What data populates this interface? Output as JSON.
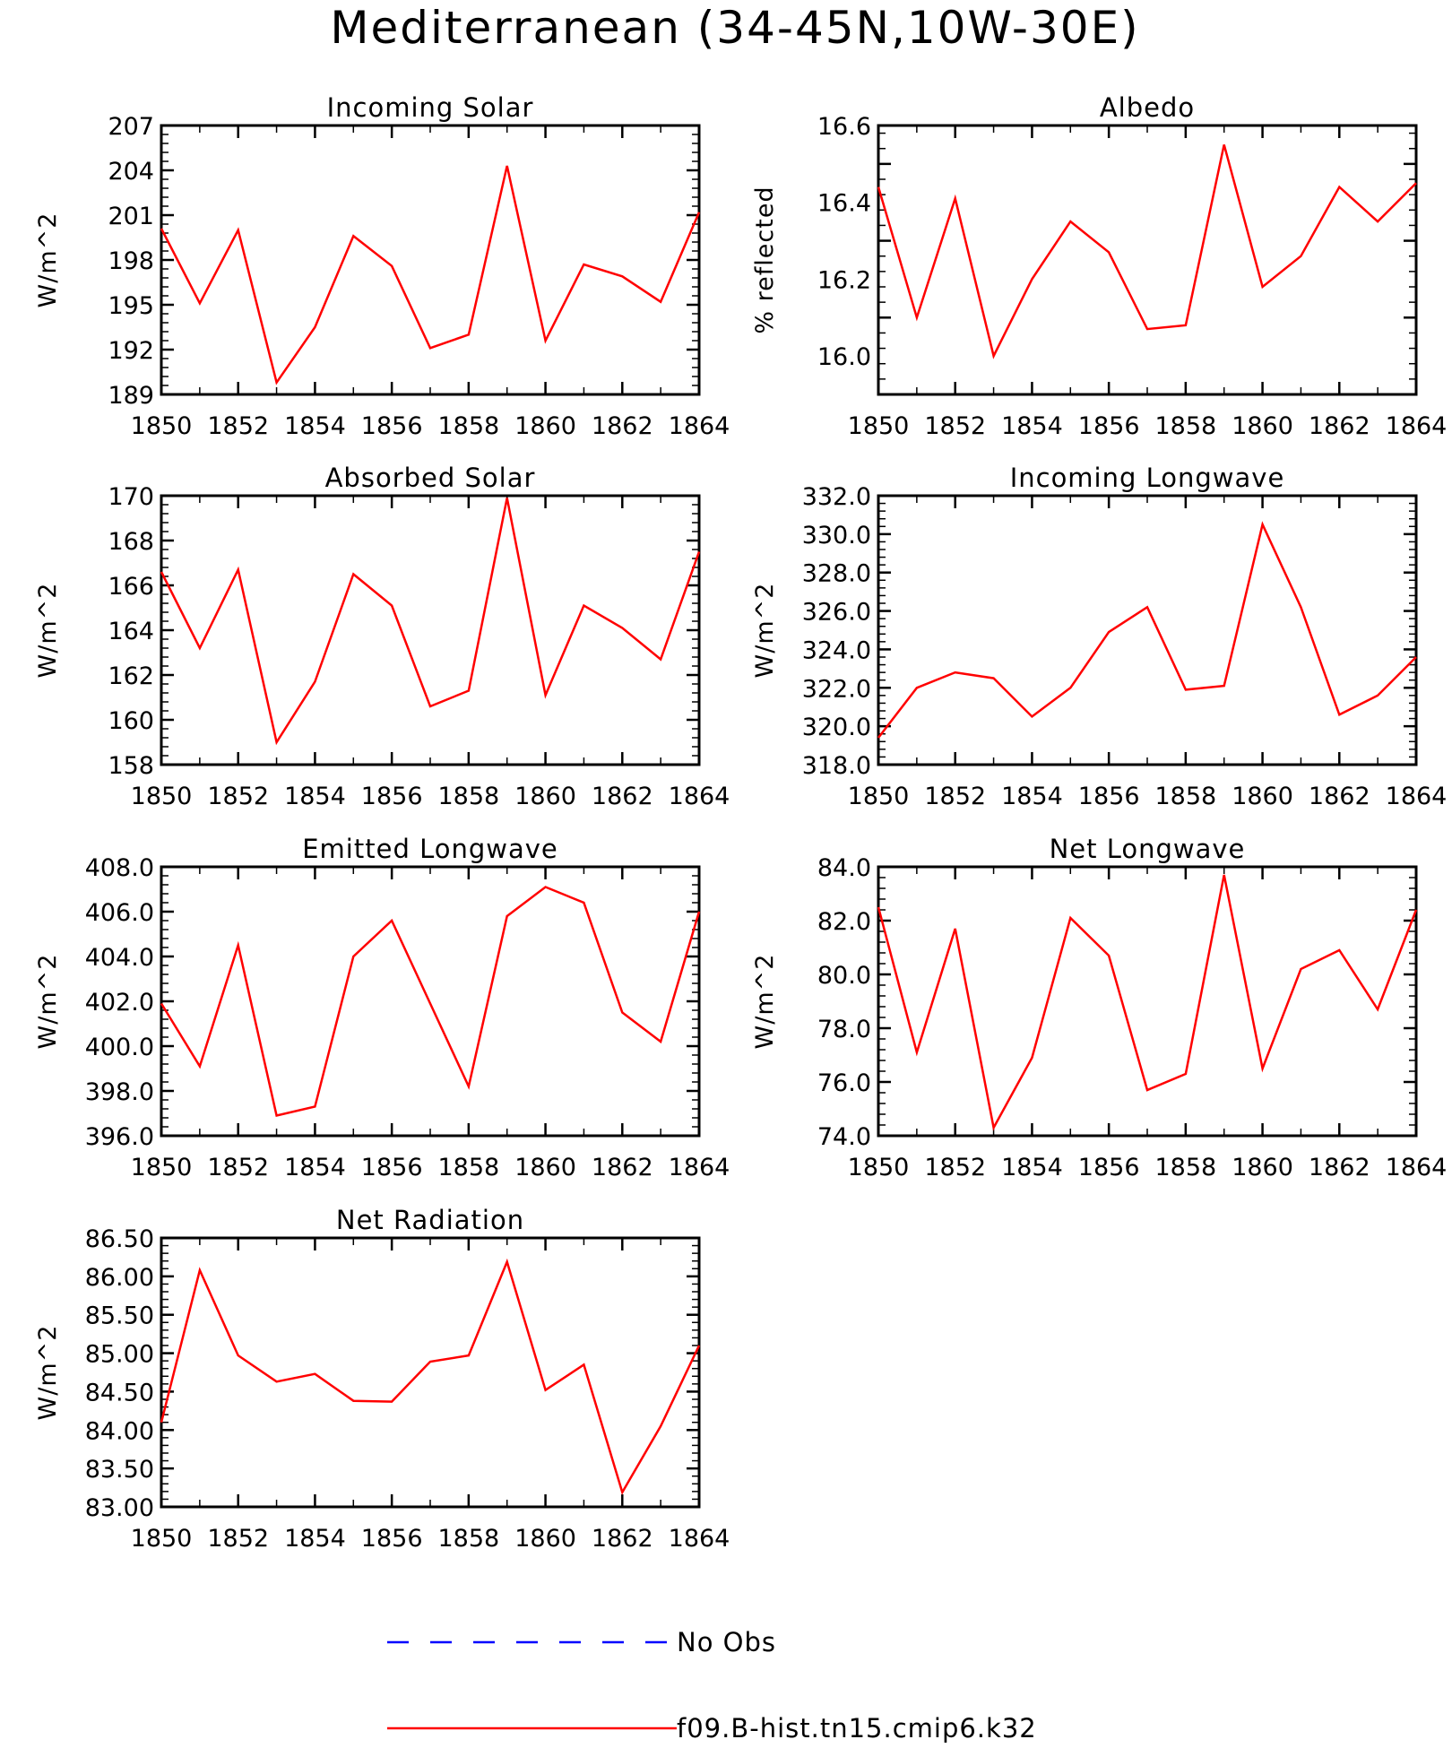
{
  "chart_data": {
    "title": "Mediterranean (34-45N,10W-30E)",
    "colors": {
      "model": "#ff0000",
      "obs": "#0000ff",
      "axis": "#000000"
    },
    "legend": [
      {
        "label": "No Obs",
        "color": "#0000ff",
        "style": "dashed"
      },
      {
        "label": "f09.B-hist.tn15.cmip6.k32",
        "color": "#ff0000",
        "style": "solid"
      }
    ],
    "panels": [
      {
        "type": "line",
        "title": "Incoming Solar",
        "ylabel": "W/m^2",
        "xlim": [
          1850,
          1864
        ],
        "ylim": [
          189,
          207
        ],
        "xticks": [
          "1850",
          "1852",
          "1854",
          "1856",
          "1858",
          "1860",
          "1862",
          "1864"
        ],
        "yticks": [
          "189",
          "192",
          "195",
          "198",
          "201",
          "204",
          "207"
        ],
        "x": [
          1850,
          1851,
          1852,
          1853,
          1854,
          1855,
          1856,
          1857,
          1858,
          1859,
          1860,
          1861,
          1862,
          1863,
          1864
        ],
        "series": [
          {
            "name": "f09.B-hist.tn15.cmip6.k32",
            "values": [
              200.1,
              195.1,
              200.0,
              189.8,
              193.5,
              199.6,
              197.6,
              192.1,
              193.0,
              204.3,
              192.6,
              197.7,
              196.9,
              195.2,
              201.2
            ]
          }
        ]
      },
      {
        "type": "line",
        "title": "Albedo",
        "ylabel": "% reflected",
        "xlim": [
          1850,
          1864
        ],
        "ylim": [
          15.9,
          16.6
        ],
        "xticks": [
          "1850",
          "1852",
          "1854",
          "1856",
          "1858",
          "1860",
          "1862",
          "1864"
        ],
        "yticks": [
          "16.0",
          "16.2",
          "16.4",
          "16.6"
        ],
        "x": [
          1850,
          1851,
          1852,
          1853,
          1854,
          1855,
          1856,
          1857,
          1858,
          1859,
          1860,
          1861,
          1862,
          1863,
          1864
        ],
        "series": [
          {
            "name": "f09.B-hist.tn15.cmip6.k32",
            "values": [
              16.44,
              16.1,
              16.41,
              16.0,
              16.2,
              16.35,
              16.27,
              16.07,
              16.08,
              16.55,
              16.18,
              16.26,
              16.44,
              16.35,
              16.45
            ]
          }
        ]
      },
      {
        "type": "line",
        "title": "Absorbed Solar",
        "ylabel": "W/m^2",
        "xlim": [
          1850,
          1864
        ],
        "ylim": [
          158,
          170
        ],
        "xticks": [
          "1850",
          "1852",
          "1854",
          "1856",
          "1858",
          "1860",
          "1862",
          "1864"
        ],
        "yticks": [
          "158",
          "160",
          "162",
          "164",
          "166",
          "168",
          "170"
        ],
        "x": [
          1850,
          1851,
          1852,
          1853,
          1854,
          1855,
          1856,
          1857,
          1858,
          1859,
          1860,
          1861,
          1862,
          1863,
          1864
        ],
        "series": [
          {
            "name": "f09.B-hist.tn15.cmip6.k32",
            "values": [
              166.6,
              163.2,
              166.7,
              159.0,
              161.7,
              166.5,
              165.1,
              160.6,
              161.3,
              169.9,
              161.1,
              165.1,
              164.1,
              162.7,
              167.5
            ]
          }
        ]
      },
      {
        "type": "line",
        "title": "Incoming Longwave",
        "ylabel": "W/m^2",
        "xlim": [
          1850,
          1864
        ],
        "ylim": [
          318,
          332
        ],
        "xticks": [
          "1850",
          "1852",
          "1854",
          "1856",
          "1858",
          "1860",
          "1862",
          "1864"
        ],
        "yticks": [
          "318.0",
          "320.0",
          "322.0",
          "324.0",
          "326.0",
          "328.0",
          "330.0",
          "332.0"
        ],
        "x": [
          1850,
          1851,
          1852,
          1853,
          1854,
          1855,
          1856,
          1857,
          1858,
          1859,
          1860,
          1861,
          1862,
          1863,
          1864
        ],
        "series": [
          {
            "name": "f09.B-hist.tn15.cmip6.k32",
            "values": [
              319.4,
              322.0,
              322.8,
              322.5,
              320.5,
              322.0,
              324.9,
              326.2,
              321.9,
              322.1,
              330.5,
              326.2,
              320.6,
              321.6,
              323.6
            ]
          }
        ]
      },
      {
        "type": "line",
        "title": "Emitted Longwave",
        "ylabel": "W/m^2",
        "xlim": [
          1850,
          1864
        ],
        "ylim": [
          396,
          408
        ],
        "xticks": [
          "1850",
          "1852",
          "1854",
          "1856",
          "1858",
          "1860",
          "1862",
          "1864"
        ],
        "yticks": [
          "396.0",
          "398.0",
          "400.0",
          "402.0",
          "404.0",
          "406.0",
          "408.0"
        ],
        "x": [
          1850,
          1851,
          1852,
          1853,
          1854,
          1855,
          1856,
          1857,
          1858,
          1859,
          1860,
          1861,
          1862,
          1863,
          1864
        ],
        "series": [
          {
            "name": "f09.B-hist.tn15.cmip6.k32",
            "values": [
              401.9,
              399.1,
              404.5,
              396.9,
              397.3,
              404.0,
              405.6,
              401.9,
              398.2,
              405.8,
              407.1,
              406.4,
              401.5,
              400.2,
              406.0
            ]
          }
        ]
      },
      {
        "type": "line",
        "title": "Net Longwave",
        "ylabel": "W/m^2",
        "xlim": [
          1850,
          1864
        ],
        "ylim": [
          74,
          84
        ],
        "xticks": [
          "1850",
          "1852",
          "1854",
          "1856",
          "1858",
          "1860",
          "1862",
          "1864"
        ],
        "yticks": [
          "74.0",
          "76.0",
          "78.0",
          "80.0",
          "82.0",
          "84.0"
        ],
        "x": [
          1850,
          1851,
          1852,
          1853,
          1854,
          1855,
          1856,
          1857,
          1858,
          1859,
          1860,
          1861,
          1862,
          1863,
          1864
        ],
        "series": [
          {
            "name": "f09.B-hist.tn15.cmip6.k32",
            "values": [
              82.5,
              77.1,
              81.7,
              74.3,
              76.9,
              82.1,
              80.7,
              75.7,
              76.3,
              83.7,
              76.5,
              80.2,
              80.9,
              78.7,
              82.4
            ]
          }
        ]
      },
      {
        "type": "line",
        "title": "Net Radiation",
        "ylabel": "W/m^2",
        "xlim": [
          1850,
          1864
        ],
        "ylim": [
          83,
          86.5
        ],
        "xticks": [
          "1850",
          "1852",
          "1854",
          "1856",
          "1858",
          "1860",
          "1862",
          "1864"
        ],
        "yticks": [
          "83.00",
          "83.50",
          "84.00",
          "84.50",
          "85.00",
          "85.50",
          "86.00",
          "86.50"
        ],
        "x": [
          1850,
          1851,
          1852,
          1853,
          1854,
          1855,
          1856,
          1857,
          1858,
          1859,
          1860,
          1861,
          1862,
          1863,
          1864
        ],
        "series": [
          {
            "name": "f09.B-hist.tn15.cmip6.k32",
            "values": [
              84.1,
              86.08,
              84.97,
              84.63,
              84.73,
              84.38,
              84.37,
              84.89,
              84.97,
              86.19,
              84.52,
              84.85,
              83.19,
              84.05,
              85.1
            ]
          }
        ]
      }
    ]
  }
}
